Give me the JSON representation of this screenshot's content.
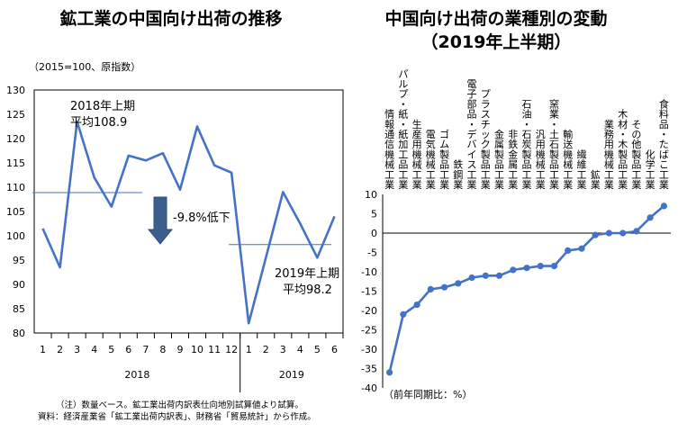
{
  "chart_data": [
    {
      "type": "line",
      "title": "鉱工業の中国向け出荷の推移",
      "unit_label": "（2015=100、原指数）",
      "x": [
        "1",
        "2",
        "3",
        "4",
        "5",
        "6",
        "7",
        "8",
        "9",
        "10",
        "11",
        "12",
        "1",
        "2",
        "3",
        "4",
        "5",
        "6"
      ],
      "year_labels": [
        "2018",
        "2019"
      ],
      "values": [
        101.5,
        93.5,
        123.5,
        112,
        106,
        116.5,
        115.5,
        117,
        109.5,
        122.5,
        114.5,
        113,
        82,
        95.5,
        109,
        102.5,
        95.5,
        104
      ],
      "ylim": [
        80,
        130
      ],
      "yticks": [
        80,
        85,
        90,
        95,
        100,
        105,
        110,
        115,
        120,
        125,
        130
      ],
      "averages": [
        {
          "label_line1": "2018年上期",
          "label_line2": "平均108.9",
          "value": 108.9
        },
        {
          "label_line1": "2019年上期",
          "label_line2": "平均98.2",
          "value": 98.2
        }
      ],
      "change_label": "-9.8%低下",
      "note1": "（注）数量ベース。鉱工業出荷内訳表仕向地別試算値より試算。",
      "note2": "資料：経済産業省「鉱工業出荷内訳表」、財務省「貿易統計」から作成。"
    },
    {
      "type": "line",
      "title_line1": "中国向け出荷の業種別の変動",
      "title_line2": "（2019年上半期）",
      "categories": [
        "情報通信機械工業",
        "パルプ・紙・紙加工品工業",
        "生産用機械工業",
        "電気機械工業",
        "ゴム製品工業",
        "鉄鋼業",
        "電子部品・デバイス工業",
        "プラスチック製品工業",
        "金属製品工業",
        "非鉄金属工業",
        "石油・石炭製品工業",
        "汎用機械工業",
        "窯業・土石製品工業",
        "輸送機械工業",
        "繊維工業",
        "鉱業",
        "業務用機械工業",
        "木材・木製品工業",
        "その他製品工業",
        "化学工業",
        "食料品・たばこ工業"
      ],
      "values": [
        -36,
        -21,
        -18.5,
        -14.5,
        -14,
        -13,
        -11.5,
        -11,
        -11,
        -9.5,
        -9,
        -8.5,
        -8.5,
        -4.5,
        -4,
        -0.5,
        0,
        0,
        0.5,
        4,
        7
      ],
      "ylim": [
        -40,
        10
      ],
      "yticks": [
        10,
        5,
        0,
        -5,
        -10,
        -15,
        -20,
        -25,
        -30,
        -35,
        -40
      ],
      "ylabel": "（前年同期比：%）"
    }
  ],
  "colors": {
    "line": "#4472C4",
    "marker": "#4472C4",
    "arrow": "#3B5E8C"
  }
}
